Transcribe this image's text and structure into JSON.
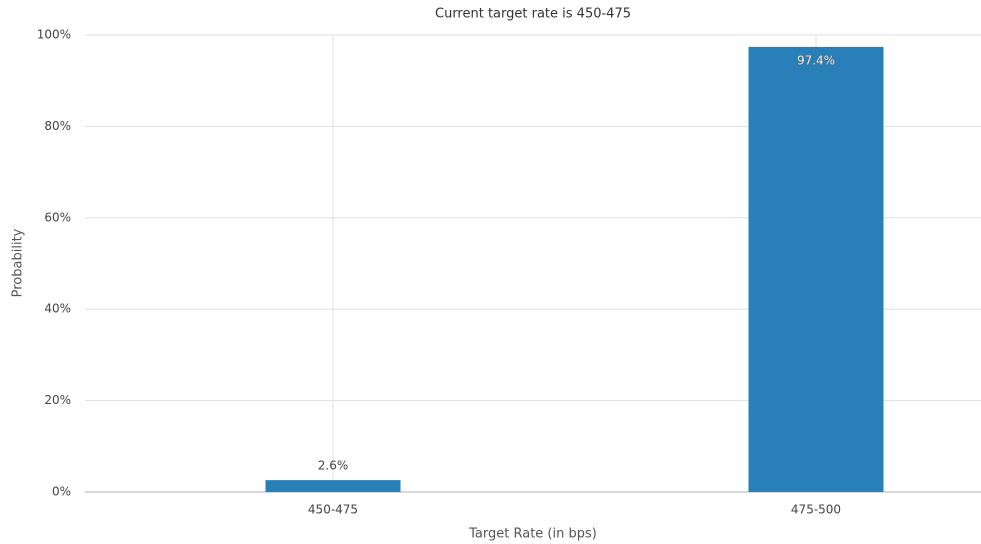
{
  "chart_data": {
    "type": "bar",
    "title": "Current target rate is 450-475",
    "x_label": "Target Rate (in bps)",
    "y_label": "Probability",
    "categories": [
      "450-475",
      "475-500"
    ],
    "values": [
      2.6,
      97.4
    ],
    "value_labels": [
      "2.6%",
      "97.4%"
    ],
    "color": "#2980b9",
    "ylim": [
      0,
      100
    ],
    "yticks": [
      {
        "value": 0,
        "label": "0%"
      },
      {
        "value": 20,
        "label": "20%"
      },
      {
        "value": 40,
        "label": "40%"
      },
      {
        "value": 60,
        "label": "60%"
      },
      {
        "value": 80,
        "label": "80%"
      },
      {
        "value": 100,
        "label": "100%"
      }
    ],
    "grid": true
  }
}
